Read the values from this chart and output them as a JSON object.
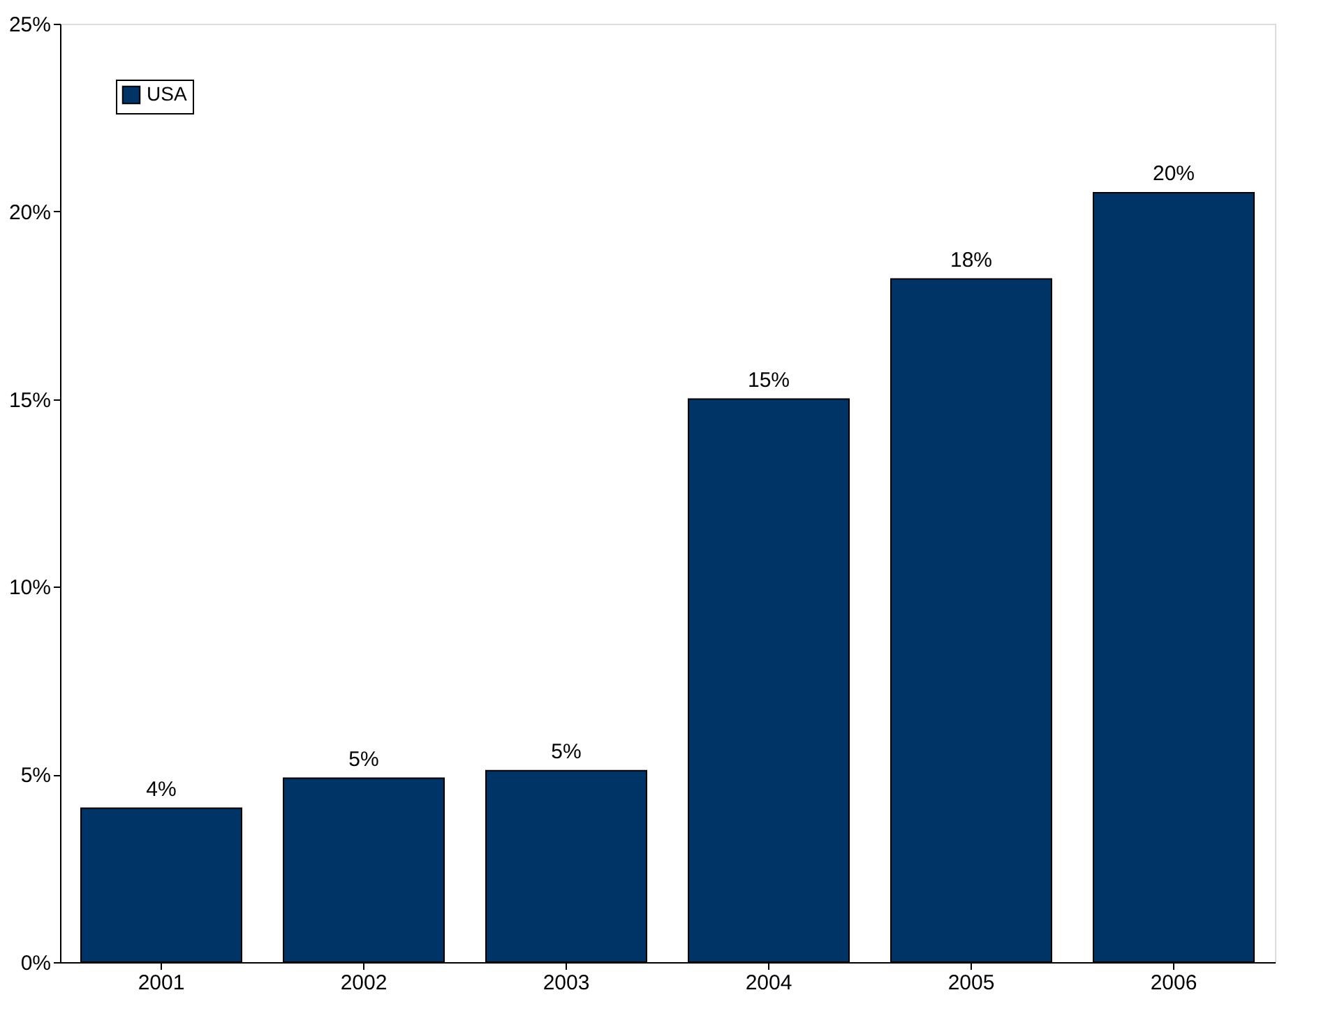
{
  "chart_data": {
    "type": "bar",
    "categories": [
      "2001",
      "2002",
      "2003",
      "2004",
      "2005",
      "2006"
    ],
    "series": [
      {
        "name": "USA",
        "color": "#003366",
        "values": [
          4.1,
          4.9,
          5.1,
          15.0,
          18.2,
          20.5
        ],
        "value_labels": [
          "4%",
          "5%",
          "5%",
          "15%",
          "18%",
          "20%"
        ]
      }
    ],
    "ylim": [
      0,
      25
    ],
    "yticks": [
      {
        "value": 0,
        "label": "0%"
      },
      {
        "value": 5,
        "label": "5%"
      },
      {
        "value": 10,
        "label": "10%"
      },
      {
        "value": 15,
        "label": "15%"
      },
      {
        "value": 20,
        "label": "20%"
      },
      {
        "value": 25,
        "label": "25%"
      }
    ],
    "grid": false,
    "legend": "top left"
  }
}
